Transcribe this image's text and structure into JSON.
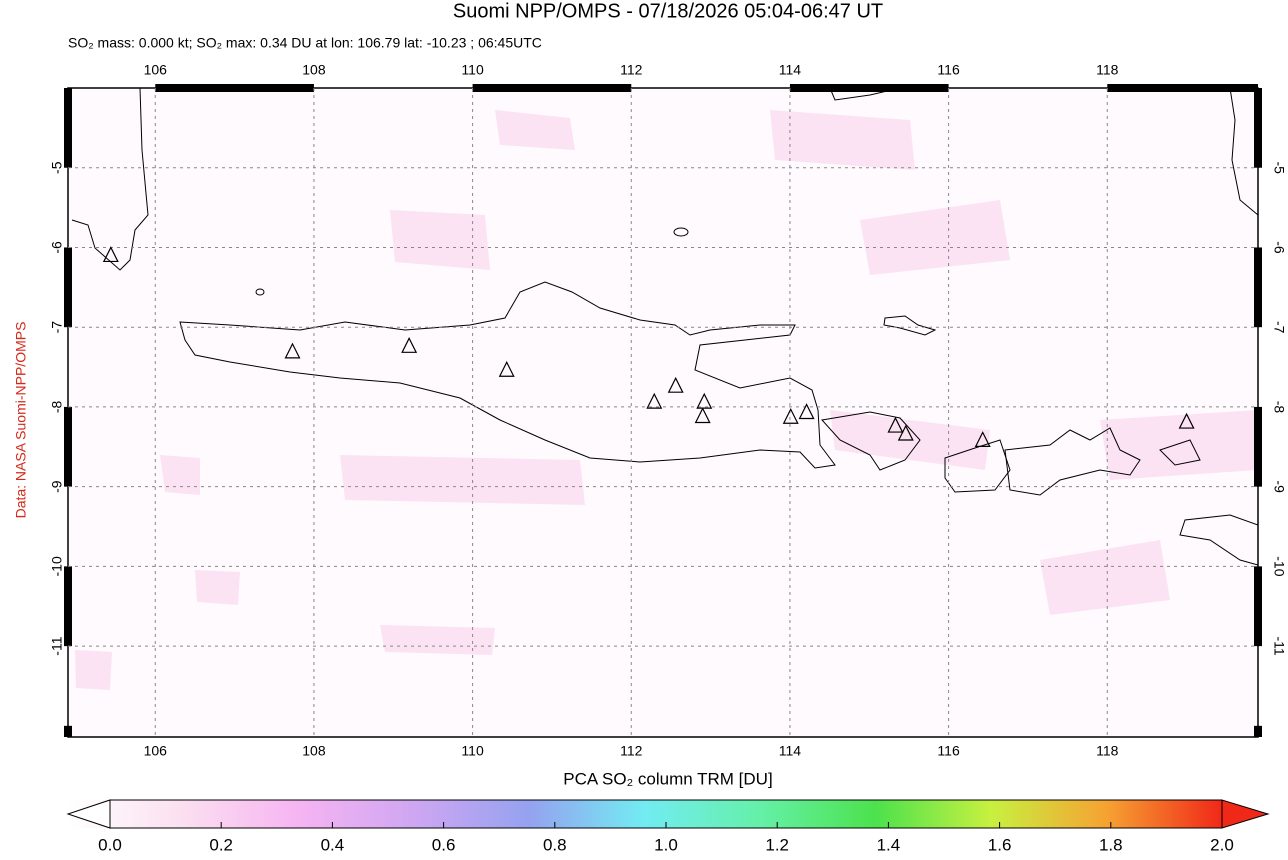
{
  "chart_data": {
    "type": "map",
    "title": "Suomi NPP/OMPS - 07/18/2026 05:04-06:47 UT",
    "subtitle": "SO₂ mass: 0.000 kt; SO₂ max: 0.34 DU at lon: 106.79 lat: -10.23 ; 06:45UTC",
    "credit": "Data: NASA Suomi-NPP/OMPS",
    "xlim": [
      104.9,
      119.9
    ],
    "ylim": [
      -12.14,
      -4
    ],
    "xticks": [
      106,
      108,
      110,
      112,
      114,
      116,
      118
    ],
    "yticks": [
      -5,
      -6,
      -7,
      -8,
      -9,
      -10,
      -11
    ],
    "grid": true,
    "volcanoes": {
      "lon": [
        105.44,
        107.73,
        109.2,
        110.43,
        112.29,
        112.56,
        112.92,
        112.9,
        114.01,
        114.21,
        115.33,
        115.46,
        116.43,
        119.0
      ],
      "lat": [
        -6.1,
        -7.31,
        -7.24,
        -7.54,
        -7.94,
        -7.74,
        -7.94,
        -8.12,
        -8.13,
        -8.07,
        -8.24,
        -8.34,
        -8.42,
        -8.19
      ]
    },
    "colorbar": {
      "label": "PCA SO₂ column TRM [DU]",
      "lim": [
        0,
        2
      ],
      "ticks": [
        {
          "value": 0,
          "label": "0.0"
        },
        0.2,
        0.4,
        0.6,
        0.8,
        {
          "value": 1,
          "label": "1.0"
        },
        1.2,
        1.4,
        1.6,
        1.8,
        {
          "value": 2,
          "label": "2.0"
        }
      ]
    }
  }
}
